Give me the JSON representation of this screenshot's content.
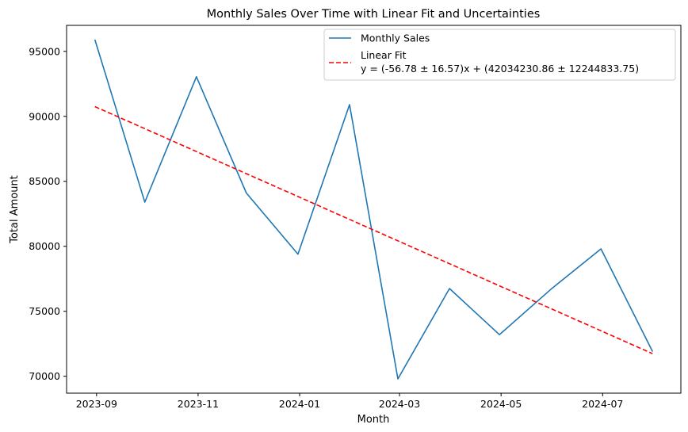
{
  "chart_data": {
    "type": "line",
    "title": "Monthly Sales Over Time with Linear Fit and Uncertainties",
    "xlabel": "Month",
    "ylabel": "Total Amount",
    "x": [
      "2023-08-31",
      "2023-09-30",
      "2023-10-31",
      "2023-11-30",
      "2023-12-31",
      "2024-01-31",
      "2024-02-29",
      "2024-03-31",
      "2024-04-30",
      "2024-05-31",
      "2024-06-30",
      "2024-07-31"
    ],
    "xticks": [
      "2023-09",
      "2023-11",
      "2024-01",
      "2024-03",
      "2024-05",
      "2024-07"
    ],
    "xlim": [
      "2023-08-14",
      "2024-08-17"
    ],
    "yticks": [
      70000,
      75000,
      80000,
      85000,
      90000,
      95000
    ],
    "ylim": [
      68700,
      97000
    ],
    "grid": false,
    "legend_position": "top-right",
    "series": [
      {
        "name": "Monthly Sales",
        "style": "solid",
        "color": "#1f77b4",
        "values": [
          95900,
          83400,
          93050,
          84100,
          79400,
          90900,
          69800,
          76750,
          73200,
          76700,
          79800,
          71900
        ]
      },
      {
        "name": "Linear Fit",
        "equation": "y = (-56.78 ± 16.57)x + (42034230.86 ± 12244833.75)",
        "style": "dashed",
        "color": "#ff0000",
        "values": [
          90750,
          89050,
          87290,
          85590,
          83830,
          82070,
          80420,
          78660,
          76960,
          75200,
          73500,
          71740
        ]
      }
    ]
  }
}
